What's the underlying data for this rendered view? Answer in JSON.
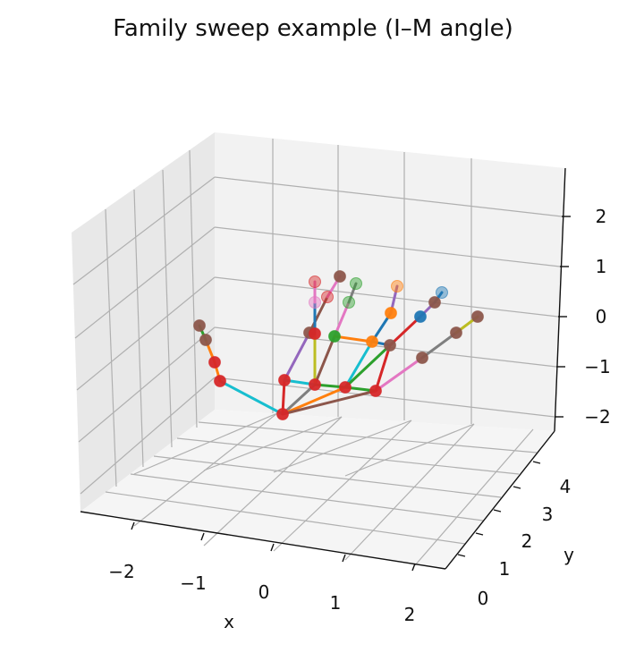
{
  "chart_data": {
    "type": "scatter3d",
    "title": "Family sweep example (I–M angle)",
    "xlabel": "x",
    "ylabel": "y",
    "zlabel": "",
    "xlim": [
      -2.7,
      2.6
    ],
    "ylim": [
      -0.5,
      4.8
    ],
    "zlim": [
      -2.2,
      2.6
    ],
    "x_ticks": [
      "−2",
      "−1",
      "0",
      "1",
      "2"
    ],
    "y_ticks": [
      "0",
      "1",
      "2",
      "3",
      "4"
    ],
    "z_ticks": [
      "−2",
      "−1",
      "0",
      "1",
      "2"
    ],
    "grid": true,
    "colors": {
      "blue": "#1f77b4",
      "orange": "#ff7f0e",
      "green": "#2ca02c",
      "red": "#d62728",
      "purple": "#9467bd",
      "brown": "#8c564b",
      "pink": "#e377c2",
      "gray": "#7f7f7f",
      "olive": "#bcbd22",
      "cyan": "#17becf"
    }
  }
}
